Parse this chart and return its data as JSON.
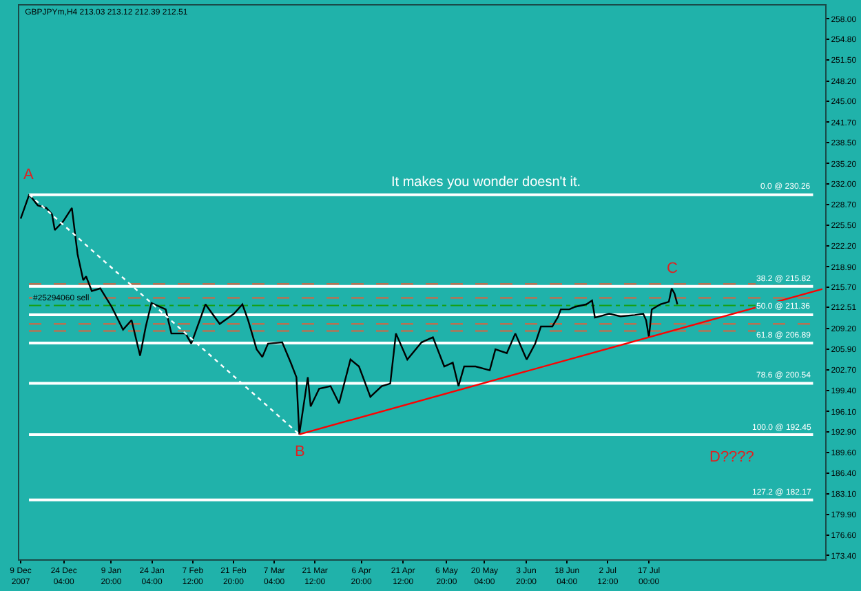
{
  "chart_data": {
    "type": "line",
    "title": "GBPJPYm,H4 213.03 213.12 212.39 212.51",
    "x": [
      "2007-12-09",
      "2007-12-12",
      "2007-12-15",
      "2007-12-18",
      "2007-12-20",
      "2007-12-21",
      "2007-12-24",
      "2007-12-27",
      "2007-12-29",
      "2007-12-31",
      "2008-01-01",
      "2008-01-03",
      "2008-01-06",
      "2008-01-10",
      "2008-01-14",
      "2008-01-17",
      "2008-01-20",
      "2008-01-22",
      "2008-01-24",
      "2008-01-29",
      "2008-01-31",
      "2008-02-05",
      "2008-02-07",
      "2008-02-12",
      "2008-02-17",
      "2008-02-22",
      "2008-02-25",
      "2008-02-27",
      "2008-03-01",
      "2008-03-03",
      "2008-03-05",
      "2008-03-10",
      "2008-03-13",
      "2008-03-15",
      "2008-03-16",
      "2008-03-17",
      "2008-03-19",
      "2008-03-20",
      "2008-03-23",
      "2008-03-27",
      "2008-03-30",
      "2008-04-03",
      "2008-04-06",
      "2008-04-10",
      "2008-04-14",
      "2008-04-17",
      "2008-04-19",
      "2008-04-23",
      "2008-04-28",
      "2008-05-02",
      "2008-05-06",
      "2008-05-09",
      "2008-05-11",
      "2008-05-13",
      "2008-05-17",
      "2008-05-22",
      "2008-05-24",
      "2008-05-28",
      "2008-05-31",
      "2008-06-03",
      "2008-06-04",
      "2008-06-07",
      "2008-06-09",
      "2008-06-13",
      "2008-06-15",
      "2008-06-16",
      "2008-06-19",
      "2008-06-21",
      "2008-06-25",
      "2008-06-27",
      "2008-06-28",
      "2008-07-03",
      "2008-07-07",
      "2008-07-12",
      "2008-07-15",
      "2008-07-16",
      "2008-07-17",
      "2008-07-18",
      "2008-07-21",
      "2008-07-24",
      "2008-07-25",
      "2008-07-26",
      "2008-07-27"
    ],
    "series": [
      {
        "color": "#000000",
        "values": [
          226.5,
          230.3,
          228.6,
          228.2,
          227.2,
          224.7,
          226.1,
          228.2,
          220.9,
          216.8,
          217.4,
          215.1,
          215.5,
          212.6,
          209.0,
          210.5,
          204.9,
          209.5,
          213.2,
          212.2,
          208.4,
          208.4,
          206.8,
          213.0,
          209.9,
          211.5,
          213.0,
          210.5,
          205.9,
          204.7,
          206.8,
          207.0,
          203.8,
          201.5,
          192.5,
          195.5,
          201.5,
          196.9,
          199.7,
          200.1,
          197.4,
          204.3,
          203.2,
          198.4,
          200.1,
          200.5,
          208.4,
          204.3,
          207.0,
          207.8,
          203.2,
          203.8,
          200.1,
          203.2,
          203.2,
          202.6,
          205.9,
          205.3,
          208.4,
          205.3,
          204.3,
          206.8,
          209.5,
          209.5,
          211.0,
          212.2,
          212.2,
          212.6,
          213.0,
          213.6,
          210.9,
          211.5,
          211.1,
          211.3,
          211.5,
          210.5,
          207.8,
          212.2,
          213.0,
          213.4,
          215.5,
          214.7,
          213.0
        ]
      },
      {
        "color": "#ff0000",
        "x": [
          "2008-03-16",
          "2008-09-16"
        ],
        "values": [
          192.5,
          215.4
        ]
      },
      {
        "color": "#ffffff",
        "x": [
          "2007-12-12",
          "2008-03-16"
        ],
        "values": [
          230.3,
          192.5
        ],
        "line_style": "dotted"
      }
    ],
    "xlim": [
      "2007-12-08T12:00",
      "2008-09-17"
    ],
    "xticks": [
      {
        "value": "2007-12-09",
        "label": "9 Dec 2007"
      },
      {
        "value": "2007-12-24T04:00",
        "label": "24 Dec 04:00"
      },
      {
        "value": "2008-01-09T20:00",
        "label": "9 Jan 20:00"
      },
      {
        "value": "2008-01-24T04:00",
        "label": "24 Jan 04:00"
      },
      {
        "value": "2008-02-07T12:00",
        "label": "7 Feb 12:00"
      },
      {
        "value": "2008-02-21T20:00",
        "label": "21 Feb 20:00"
      },
      {
        "value": "2008-03-07T04:00",
        "label": "7 Mar 04:00"
      },
      {
        "value": "2008-03-21T12:00",
        "label": "21 Mar 12:00"
      },
      {
        "value": "2008-04-06T20:00",
        "label": "6 Apr 20:00"
      },
      {
        "value": "2008-04-21T12:00",
        "label": "21 Apr 12:00"
      },
      {
        "value": "2008-05-06T20:00",
        "label": "6 May 20:00"
      },
      {
        "value": "2008-05-20T04:00",
        "label": "20 May 04:00"
      },
      {
        "value": "2008-06-03T20:00",
        "label": "3 Jun 20:00"
      },
      {
        "value": "2008-06-18T04:00",
        "label": "18 Jun 04:00"
      },
      {
        "value": "2008-07-02T12:00",
        "label": "2 Jul 12:00"
      },
      {
        "value": "2008-07-17T00:00",
        "label": "17 Jul 00:00"
      }
    ],
    "ylim": [
      172.8,
      260.1
    ],
    "yticks": [
      {
        "value": 258,
        "label": "258.00"
      },
      {
        "value": 254.8,
        "label": "254.80"
      },
      {
        "value": 251.5,
        "label": "251.50"
      },
      {
        "value": 248.2,
        "label": "248.20"
      },
      {
        "value": 245,
        "label": "245.00"
      },
      {
        "value": 241.7,
        "label": "241.70"
      },
      {
        "value": 238.5,
        "label": "238.50"
      },
      {
        "value": 235.2,
        "label": "235.20"
      },
      {
        "value": 232,
        "label": "232.00"
      },
      {
        "value": 228.7,
        "label": "228.70"
      },
      {
        "value": 225.5,
        "label": "225.50"
      },
      {
        "value": 222.2,
        "label": "222.20"
      },
      {
        "value": 218.9,
        "label": "218.90"
      },
      {
        "value": 215.7,
        "label": "215.70"
      },
      {
        "value": 212.51,
        "label": "212.51"
      },
      {
        "value": 209.2,
        "label": "209.20"
      },
      {
        "value": 205.9,
        "label": "205.90"
      },
      {
        "value": 202.7,
        "label": "202.70"
      },
      {
        "value": 199.4,
        "label": "199.40"
      },
      {
        "value": 196.1,
        "label": "196.10"
      },
      {
        "value": 192.9,
        "label": "192.90"
      },
      {
        "value": 189.6,
        "label": "189.60"
      },
      {
        "value": 186.4,
        "label": "186.40"
      },
      {
        "value": 183.1,
        "label": "183.10"
      },
      {
        "value": 179.9,
        "label": "179.90"
      },
      {
        "value": 176.6,
        "label": "176.60"
      },
      {
        "value": 173.4,
        "label": "173.40"
      }
    ],
    "ref_lines": [
      {
        "axis": "y",
        "value": 230.26,
        "label": "0.0 @ 230.26",
        "color": "#ffffff",
        "line_style": "solid"
      },
      {
        "axis": "y",
        "value": 215.82,
        "label": "38.2 @ 215.82",
        "color": "#ffffff",
        "line_style": "solid"
      },
      {
        "axis": "y",
        "value": 211.36,
        "label": "50.0 @ 211.36",
        "color": "#ffffff",
        "line_style": "solid"
      },
      {
        "axis": "y",
        "value": 206.89,
        "label": "61.8 @ 206.89",
        "color": "#ffffff",
        "line_style": "solid"
      },
      {
        "axis": "y",
        "value": 200.54,
        "label": "78.6 @ 200.54",
        "color": "#ffffff",
        "line_style": "solid"
      },
      {
        "axis": "y",
        "value": 192.45,
        "label": "100.0 @ 192.45",
        "color": "#ffffff",
        "line_style": "solid"
      },
      {
        "axis": "y",
        "value": 182.17,
        "label": "127.2 @ 182.17",
        "color": "#ffffff",
        "line_style": "solid"
      },
      {
        "axis": "y",
        "value": 216.2,
        "color": "#e0603a",
        "line_style": "dashed"
      },
      {
        "axis": "y",
        "value": 214.0,
        "color": "#e0603a",
        "line_style": "dashed"
      },
      {
        "axis": "y",
        "value": 209.9,
        "color": "#e0603a",
        "line_style": "dashed"
      },
      {
        "axis": "y",
        "value": 208.8,
        "color": "#e0603a",
        "line_style": "dashed"
      },
      {
        "axis": "y",
        "value": 212.8,
        "label": "#25294060 sell",
        "color": "#16a016",
        "line_style": "dashdot"
      }
    ],
    "annotations": [
      {
        "text": "A",
        "x": "2007-12-12",
        "y": 230.3
      },
      {
        "text": "B",
        "x": "2008-03-16",
        "y": 192.5
      },
      {
        "text": "C",
        "x": "2008-07-25",
        "y": 215.5
      },
      "It makes you wonder doesn't it.",
      "D????"
    ],
    "grid": false,
    "marker": "none"
  }
}
